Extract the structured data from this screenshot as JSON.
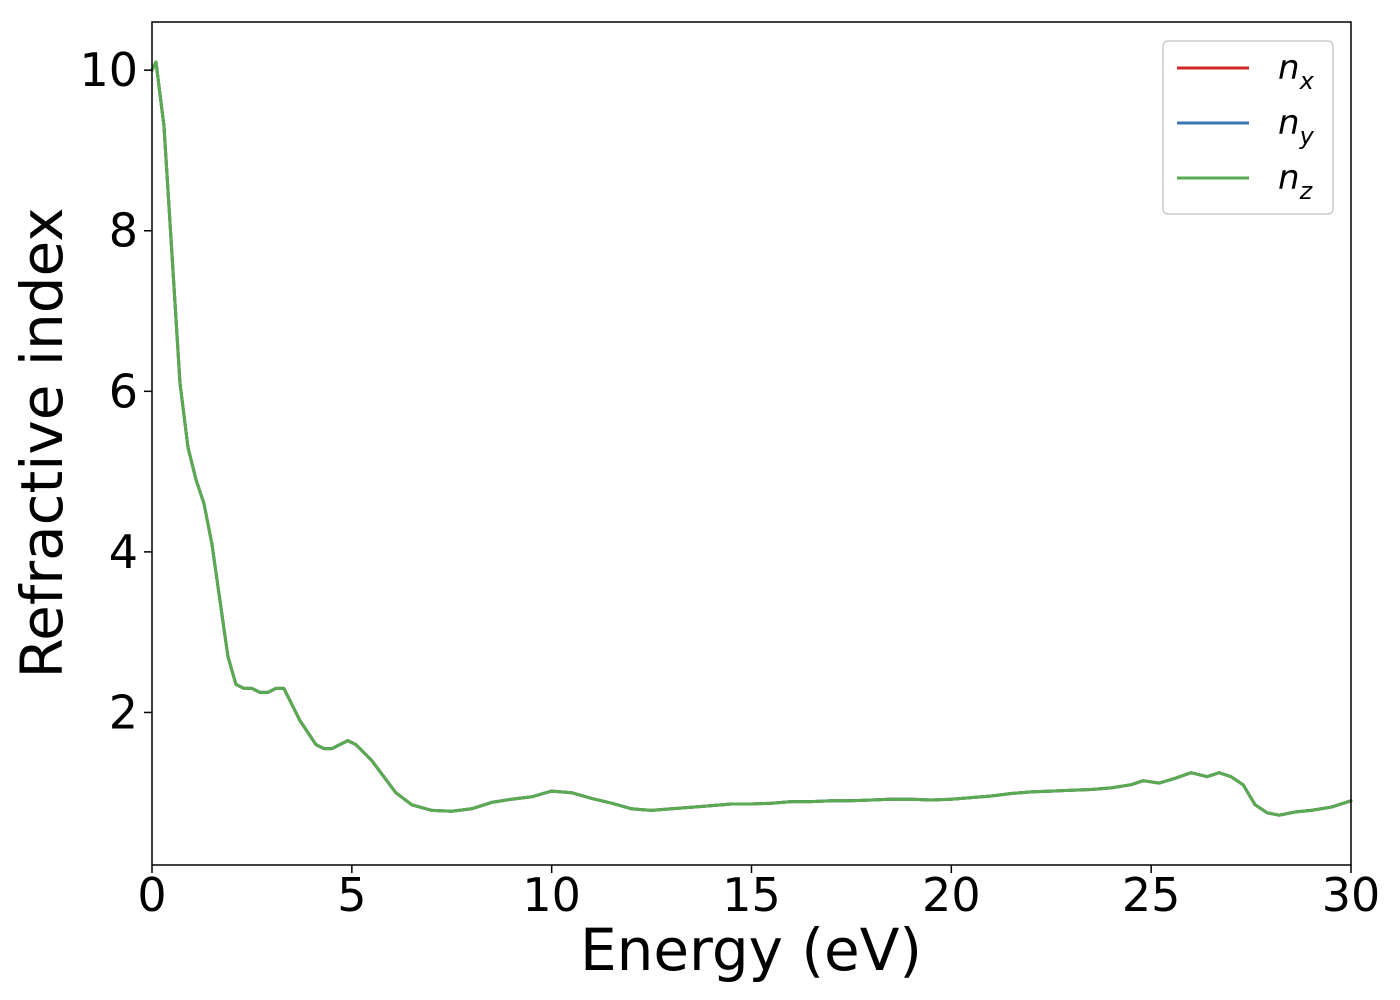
{
  "chart_data": {
    "type": "line",
    "xlabel": "Energy (eV)",
    "ylabel": "Refractive index",
    "xlim": [
      0,
      30
    ],
    "ylim": [
      0.1,
      10.6
    ],
    "xticks": [
      {
        "value": 0,
        "label": "0"
      },
      {
        "value": 5,
        "label": "5"
      },
      {
        "value": 10,
        "label": "10"
      },
      {
        "value": 15,
        "label": "15"
      },
      {
        "value": 20,
        "label": "20"
      },
      {
        "value": 25,
        "label": "25"
      },
      {
        "value": 30,
        "label": "30"
      }
    ],
    "yticks": [
      {
        "value": 2,
        "label": "2"
      },
      {
        "value": 4,
        "label": "4"
      },
      {
        "value": 6,
        "label": "6"
      },
      {
        "value": 8,
        "label": "8"
      },
      {
        "value": 10,
        "label": "10"
      }
    ],
    "grid": false,
    "legend_position": "top-right",
    "x": [
      0,
      0.1,
      0.3,
      0.5,
      0.7,
      0.9,
      1.1,
      1.3,
      1.5,
      1.7,
      1.9,
      2.1,
      2.3,
      2.5,
      2.7,
      2.9,
      3.1,
      3.3,
      3.5,
      3.7,
      3.9,
      4.1,
      4.3,
      4.5,
      4.7,
      4.9,
      5.1,
      5.3,
      5.5,
      5.8,
      6.1,
      6.5,
      7.0,
      7.5,
      8.0,
      8.5,
      9.0,
      9.5,
      10.0,
      10.5,
      11.0,
      11.5,
      12.0,
      12.5,
      13.0,
      13.5,
      14.0,
      14.5,
      15.0,
      15.5,
      16.0,
      16.5,
      17.0,
      17.5,
      18.0,
      18.5,
      19.0,
      19.5,
      20.0,
      20.5,
      21.0,
      21.5,
      22.0,
      22.5,
      23.0,
      23.5,
      24.0,
      24.5,
      24.8,
      25.2,
      25.6,
      26.0,
      26.4,
      26.7,
      27.0,
      27.3,
      27.6,
      27.9,
      28.2,
      28.6,
      29.0,
      29.5,
      30.0
    ],
    "series": [
      {
        "name": "n_x",
        "color": "#d62728",
        "values": [
          10.0,
          10.1,
          9.3,
          7.7,
          6.1,
          5.3,
          4.9,
          4.6,
          4.1,
          3.4,
          2.7,
          2.35,
          2.3,
          2.3,
          2.25,
          2.25,
          2.3,
          2.3,
          2.1,
          1.9,
          1.75,
          1.6,
          1.55,
          1.55,
          1.6,
          1.65,
          1.6,
          1.5,
          1.4,
          1.2,
          1.0,
          0.85,
          0.78,
          0.77,
          0.8,
          0.88,
          0.92,
          0.95,
          1.02,
          1.0,
          0.93,
          0.87,
          0.8,
          0.78,
          0.8,
          0.82,
          0.84,
          0.86,
          0.86,
          0.87,
          0.89,
          0.89,
          0.9,
          0.9,
          0.91,
          0.92,
          0.92,
          0.91,
          0.92,
          0.94,
          0.96,
          0.99,
          1.01,
          1.02,
          1.03,
          1.04,
          1.06,
          1.1,
          1.15,
          1.12,
          1.18,
          1.25,
          1.2,
          1.25,
          1.2,
          1.1,
          0.85,
          0.75,
          0.72,
          0.76,
          0.78,
          0.82,
          0.9
        ]
      },
      {
        "name": "n_y",
        "color": "#3b75af",
        "values": [
          10.0,
          10.1,
          9.3,
          7.7,
          6.1,
          5.3,
          4.9,
          4.6,
          4.1,
          3.4,
          2.7,
          2.35,
          2.3,
          2.3,
          2.25,
          2.25,
          2.3,
          2.3,
          2.1,
          1.9,
          1.75,
          1.6,
          1.55,
          1.55,
          1.6,
          1.65,
          1.6,
          1.5,
          1.4,
          1.2,
          1.0,
          0.85,
          0.78,
          0.77,
          0.8,
          0.88,
          0.92,
          0.95,
          1.02,
          1.0,
          0.93,
          0.87,
          0.8,
          0.78,
          0.8,
          0.82,
          0.84,
          0.86,
          0.86,
          0.87,
          0.89,
          0.89,
          0.9,
          0.9,
          0.91,
          0.92,
          0.92,
          0.91,
          0.92,
          0.94,
          0.96,
          0.99,
          1.01,
          1.02,
          1.03,
          1.04,
          1.06,
          1.1,
          1.15,
          1.12,
          1.18,
          1.25,
          1.2,
          1.25,
          1.2,
          1.1,
          0.85,
          0.75,
          0.72,
          0.76,
          0.78,
          0.82,
          0.9
        ]
      },
      {
        "name": "n_z",
        "color": "#5aaa51",
        "values": [
          10.0,
          10.1,
          9.3,
          7.7,
          6.1,
          5.3,
          4.9,
          4.6,
          4.1,
          3.4,
          2.7,
          2.35,
          2.3,
          2.3,
          2.25,
          2.25,
          2.3,
          2.3,
          2.1,
          1.9,
          1.75,
          1.6,
          1.55,
          1.55,
          1.6,
          1.65,
          1.6,
          1.5,
          1.4,
          1.2,
          1.0,
          0.85,
          0.78,
          0.77,
          0.8,
          0.88,
          0.92,
          0.95,
          1.02,
          1.0,
          0.93,
          0.87,
          0.8,
          0.78,
          0.8,
          0.82,
          0.84,
          0.86,
          0.86,
          0.87,
          0.89,
          0.89,
          0.9,
          0.9,
          0.91,
          0.92,
          0.92,
          0.91,
          0.92,
          0.94,
          0.96,
          0.99,
          1.01,
          1.02,
          1.03,
          1.04,
          1.06,
          1.1,
          1.15,
          1.12,
          1.18,
          1.25,
          1.2,
          1.25,
          1.2,
          1.1,
          0.85,
          0.75,
          0.72,
          0.76,
          0.78,
          0.82,
          0.9
        ]
      }
    ],
    "legend": [
      {
        "base": "n",
        "sub": "x",
        "color": "#d62728"
      },
      {
        "base": "n",
        "sub": "y",
        "color": "#3b75af"
      },
      {
        "base": "n",
        "sub": "z",
        "color": "#5aaa51"
      }
    ]
  }
}
